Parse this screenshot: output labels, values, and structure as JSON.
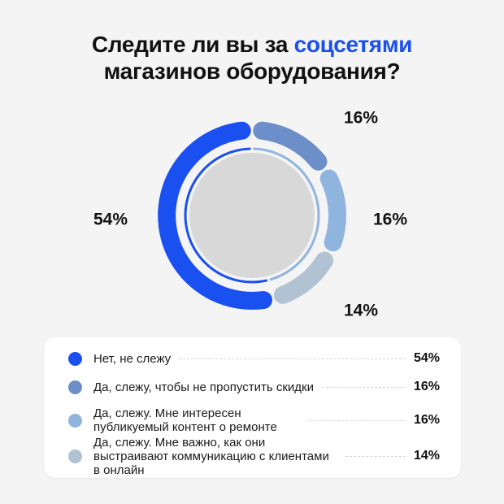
{
  "title": {
    "part1": "Следите ли вы за ",
    "accent": "соцсетями",
    "line2": "магазинов оборудования?"
  },
  "colors": {
    "accent": "#1a4ff0",
    "center": "#d8d8d8",
    "background": "#f4f4f4"
  },
  "chart_data": {
    "type": "pie",
    "title": "Следите ли вы за соцсетями магазинов оборудования?",
    "categories": [
      "Нет, не слежу",
      "Да, слежу, чтобы не пропустить скидки",
      "Да, слежу. Мне интересен публикуемый контент о ремонте",
      "Да, слежу. Мне важно, как они выстраивают коммуникацию с клиентами в онлайн"
    ],
    "values": [
      54,
      16,
      16,
      14
    ],
    "labels": [
      "54%",
      "16%",
      "16%",
      "14%"
    ],
    "colors": [
      "#1a4ff0",
      "#6c8ec9",
      "#8fb4de",
      "#b1c2d3"
    ],
    "legend_position": "bottom"
  },
  "legend": {
    "items": [
      {
        "label": "Нет, не слежу",
        "value": "54%"
      },
      {
        "label": "Да, слежу, чтобы не пропустить скидки",
        "value": "16%"
      },
      {
        "label": "Да, слежу. Мне интересен публикуемый контент о ремонте",
        "value": "16%"
      },
      {
        "label": "Да, слежу. Мне важно, как они выстраивают коммуникацию с клиентами в онлайн",
        "value": "14%"
      }
    ]
  }
}
